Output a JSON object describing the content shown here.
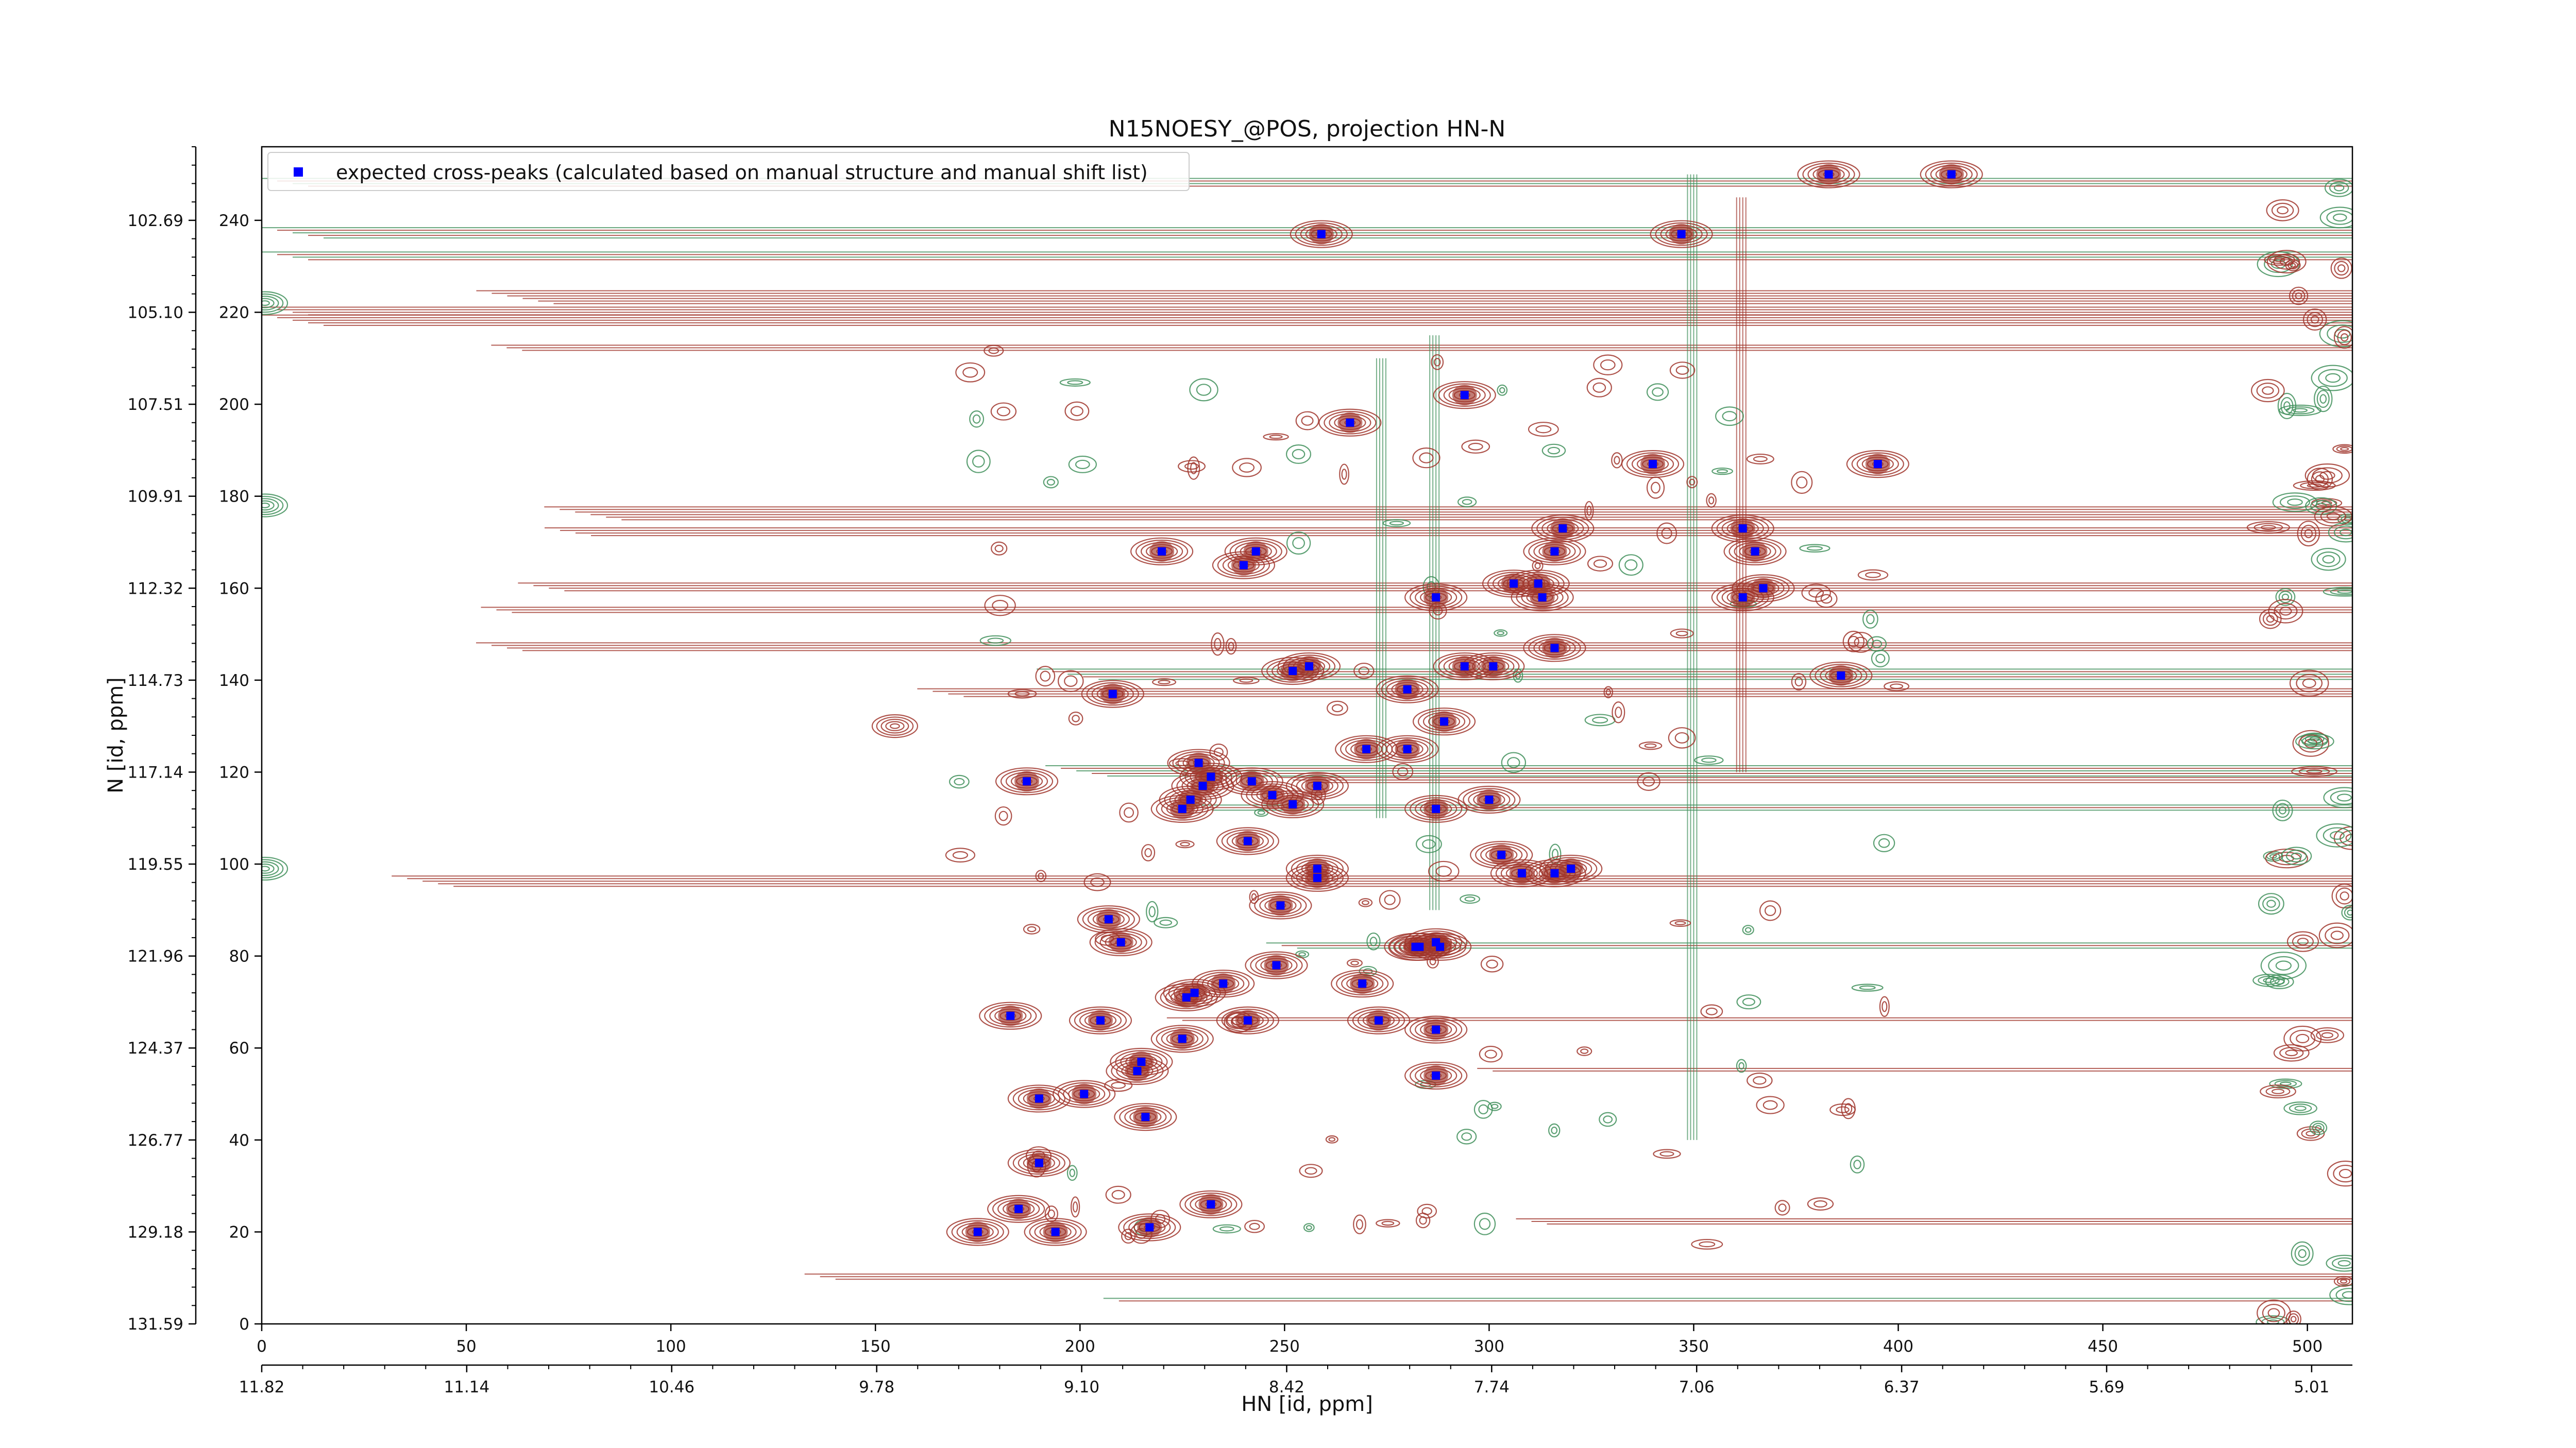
{
  "colors": {
    "background": "#ffffff",
    "positive_contour": "#a0352b",
    "negative_contour": "#3f8f5a",
    "marker": "#0000ff",
    "axis": "#000000"
  },
  "chart_data": {
    "type": "scatter",
    "title": "N15NOESY_@POS, projection HN-N",
    "xlabel": "HN [id, ppm]",
    "ylabel": "N [id, ppm]",
    "x_index_range": [
      0,
      511
    ],
    "y_index_range": [
      0,
      256
    ],
    "x_index_ticks": [
      "0",
      "50",
      "100",
      "150",
      "200",
      "250",
      "300",
      "350",
      "400",
      "450",
      "500"
    ],
    "x_ppm_ticks": [
      "11.82",
      "11.14",
      "10.46",
      "9.78",
      "9.10",
      "8.42",
      "7.74",
      "7.06",
      "6.37",
      "5.69",
      "5.01"
    ],
    "y_index_ticks": [
      "0",
      "20",
      "40",
      "60",
      "80",
      "100",
      "120",
      "140",
      "160",
      "180",
      "200",
      "220",
      "240"
    ],
    "y_ppm_ticks": [
      "131.59",
      "129.18",
      "126.77",
      "124.37",
      "121.96",
      "119.55",
      "117.14",
      "114.73",
      "112.32",
      "109.91",
      "107.51",
      "105.10",
      "102.69"
    ],
    "legend": {
      "placement": "top-left",
      "entries": [
        {
          "marker": "square",
          "color": "#0000ff",
          "label": "expected cross-peaks (calculated based on manual structure and manual shift list)"
        }
      ]
    },
    "series": [
      {
        "name": "expected cross-peaks (calculated based on manual structure and manual shift list)",
        "x": [
          383,
          413,
          259,
          347,
          266,
          294,
          340,
          395,
          318,
          316,
          362,
          365,
          220,
          243,
          240,
          287,
          312,
          313,
          306,
          362,
          367,
          316,
          252,
          256,
          280,
          301,
          294,
          386,
          208,
          289,
          270,
          280,
          229,
          232,
          242,
          225,
          227,
          230,
          247,
          252,
          258,
          287,
          300,
          187,
          241,
          303,
          308,
          258,
          258,
          316,
          320,
          249,
          207,
          210,
          283,
          282,
          287,
          288,
          248,
          235,
          228,
          183,
          205,
          226,
          273,
          241,
          269,
          287,
          225,
          215,
          190,
          201,
          214,
          287,
          216,
          190,
          185,
          232,
          175,
          194,
          217
        ],
        "y": [
          250,
          250,
          237,
          237,
          196,
          202,
          187,
          187,
          173,
          168,
          173,
          168,
          168,
          168,
          165,
          158,
          161,
          158,
          161,
          158,
          160,
          147,
          142,
          143,
          138,
          143,
          143,
          141,
          137,
          131,
          125,
          125,
          122,
          119,
          118,
          112,
          114,
          117,
          115,
          113,
          117,
          112,
          114,
          118,
          105,
          102,
          98,
          99,
          97,
          98,
          99,
          91,
          88,
          83,
          82,
          82,
          83,
          82,
          78,
          74,
          72,
          67,
          66,
          71,
          66,
          66,
          74,
          64,
          62,
          57,
          49,
          50,
          55,
          54,
          45,
          35,
          25,
          26,
          20,
          20,
          21
        ]
      }
    ],
    "grid": false
  }
}
